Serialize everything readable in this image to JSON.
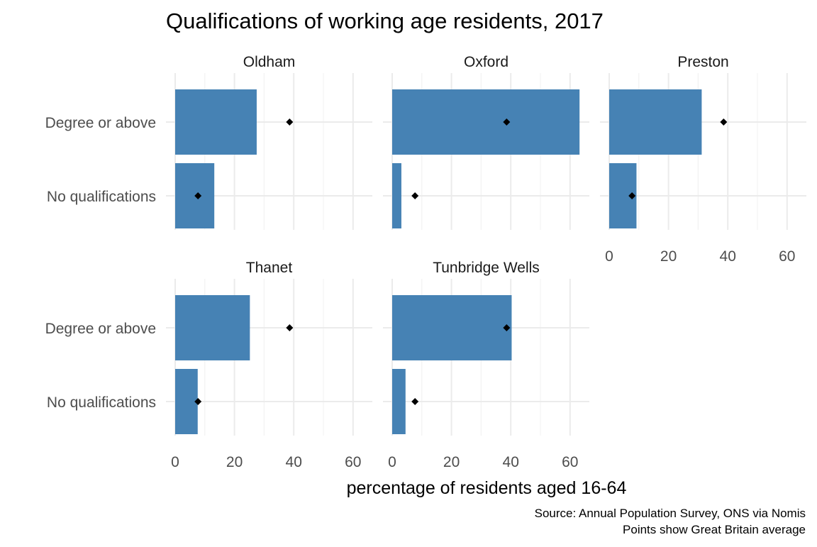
{
  "chart_data": {
    "type": "bar",
    "orientation": "horizontal",
    "title": "Qualifications of working age residents, 2017",
    "xlabel": "percentage of residents aged 16-64",
    "ylabel": "",
    "categories": [
      "Degree or above",
      "No qualifications"
    ],
    "xlim": [
      0,
      66
    ],
    "xticks": [
      0,
      20,
      40,
      60
    ],
    "grid": true,
    "bar_color": "#4682b4",
    "point_color": "#000000",
    "reference_points": {
      "name": "Great Britain average",
      "values": [
        38.6,
        7.7
      ]
    },
    "panels": [
      {
        "name": "Oldham",
        "values": [
          27.5,
          13.2
        ]
      },
      {
        "name": "Oxford",
        "values": [
          63.2,
          3.1
        ]
      },
      {
        "name": "Preston",
        "values": [
          31.2,
          9.2
        ]
      },
      {
        "name": "Thanet",
        "values": [
          25.2,
          7.6
        ]
      },
      {
        "name": "Tunbridge Wells",
        "values": [
          40.3,
          4.5
        ]
      }
    ],
    "caption": [
      "Source: Annual Population Survey, ONS via Nomis",
      "Points show Great Britain average"
    ]
  }
}
